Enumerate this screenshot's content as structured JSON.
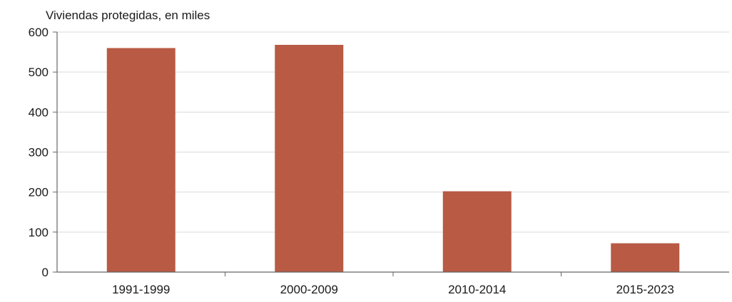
{
  "chart_data": {
    "type": "bar",
    "ylabel": "Viviendas protegidas, en miles",
    "categories": [
      "1991-1999",
      "2000-2009",
      "2010-2014",
      "2015-2023"
    ],
    "series": [
      {
        "values": [
          560,
          568,
          202,
          72
        ],
        "color": "#b85a44"
      }
    ],
    "ylim": [
      0,
      600
    ],
    "yticks": [
      "0",
      "100",
      "200",
      "300",
      "400",
      "500",
      "600"
    ],
    "grid": true,
    "legend": "none"
  },
  "colors": {
    "bar": "#b85a44",
    "grid": "#d9d9d9",
    "axis": "#666666",
    "text": "#1a1a1a"
  }
}
